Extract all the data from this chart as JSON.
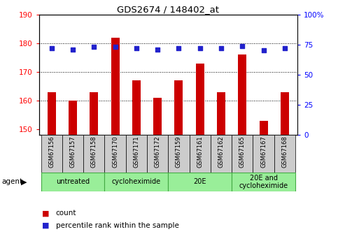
{
  "title": "GDS2674 / 148402_at",
  "samples": [
    "GSM67156",
    "GSM67157",
    "GSM67158",
    "GSM67170",
    "GSM67171",
    "GSM67172",
    "GSM67159",
    "GSM67161",
    "GSM67162",
    "GSM67165",
    "GSM67167",
    "GSM67168"
  ],
  "counts": [
    163,
    160,
    163,
    182,
    167,
    161,
    167,
    173,
    163,
    176,
    153,
    163
  ],
  "percentiles": [
    72,
    71,
    73,
    73,
    72,
    71,
    72,
    72,
    72,
    74,
    70,
    72
  ],
  "ylim_left": [
    148,
    190
  ],
  "ylim_right": [
    0,
    100
  ],
  "yticks_left": [
    150,
    160,
    170,
    180,
    190
  ],
  "yticks_right": [
    0,
    25,
    50,
    75,
    100
  ],
  "bar_color": "#CC0000",
  "dot_color": "#2222CC",
  "bar_width": 0.4,
  "agents": [
    {
      "label": "untreated",
      "start": 0,
      "end": 3
    },
    {
      "label": "cycloheximide",
      "start": 3,
      "end": 6
    },
    {
      "label": "20E",
      "start": 6,
      "end": 9
    },
    {
      "label": "20E and\ncycloheximide",
      "start": 9,
      "end": 12
    }
  ],
  "agent_bg_color": "#99ee99",
  "agent_border_color": "#44aa44",
  "sample_bg_color": "#cccccc",
  "background_color": "#ffffff",
  "legend_count_color": "#CC0000",
  "legend_pct_color": "#2222CC",
  "fig_width": 4.83,
  "fig_height": 3.45,
  "dpi": 100
}
